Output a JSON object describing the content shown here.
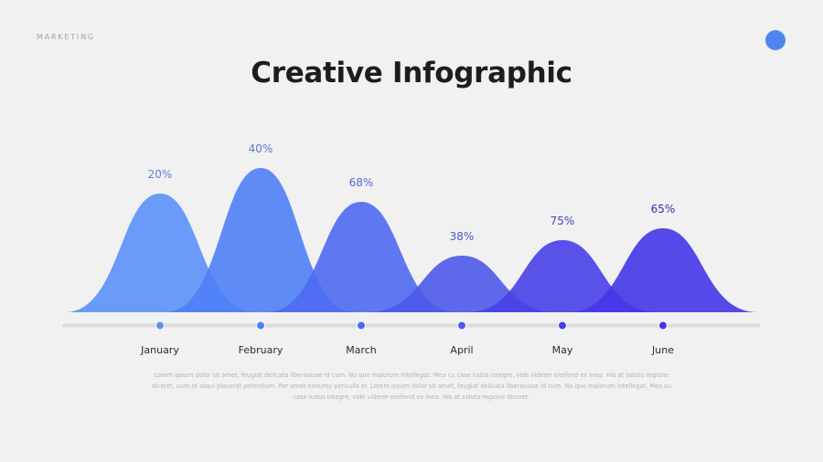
{
  "header": {
    "kicker": "MARKETING",
    "title": "Creative Infographic"
  },
  "colors": {
    "background": "#f1f1f1",
    "accent": "#4f86ee",
    "track": "#dcdcdc",
    "series": [
      "#5b91f9",
      "#4f7ff7",
      "#4f6af2",
      "#4d59e9",
      "#4840e7",
      "#4536e8"
    ]
  },
  "chart_data": {
    "type": "area",
    "categories": [
      "January",
      "February",
      "March",
      "April",
      "May",
      "June"
    ],
    "values": [
      20,
      40,
      68,
      38,
      75,
      65
    ],
    "labels": [
      "20%",
      "40%",
      "68%",
      "38%",
      "75%",
      "65%"
    ]
  },
  "description": "Lorem ipsum dolor sit amet, feugiat delicata liberavisse id cum. No quo maiorum intellegat. Mea cu case ludus integre, vide viderer eleifend ex mea. His at soluta regione diceret, cum et atqui placerat petentium. Per amet nonumy periculis ei. Lorem ipsum dolor sit amet, feugiat delicata liberavisse id cum. No quo maiorum intellegat. Mea cu case ludus integre, vide viderer eleifend ex mea. His at soluta regione diceret."
}
